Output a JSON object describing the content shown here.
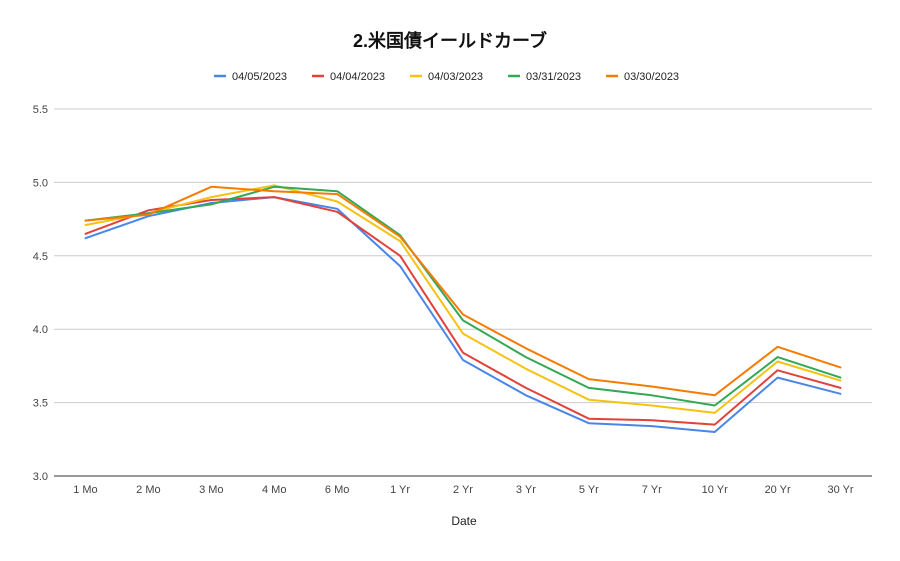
{
  "chart_data": {
    "type": "line",
    "title": "2.米国債イールドカーブ",
    "xlabel": "Date",
    "ylabel": "",
    "ylim": [
      3.0,
      5.5
    ],
    "yticks": [
      "3.0",
      "3.5",
      "4.0",
      "4.5",
      "5.0",
      "5.5"
    ],
    "grid": true,
    "legend_position": "top",
    "categories": [
      "1 Mo",
      "2 Mo",
      "3 Mo",
      "4 Mo",
      "6 Mo",
      "1 Yr",
      "2 Yr",
      "3 Yr",
      "5 Yr",
      "7 Yr",
      "10 Yr",
      "20 Yr",
      "30 Yr"
    ],
    "series": [
      {
        "name": "04/05/2023",
        "color": "#4a86e8",
        "values": [
          4.62,
          4.77,
          4.86,
          4.9,
          4.82,
          4.43,
          3.79,
          3.55,
          3.36,
          3.34,
          3.3,
          3.67,
          3.56
        ]
      },
      {
        "name": "04/04/2023",
        "color": "#e0433b",
        "values": [
          4.65,
          4.81,
          4.88,
          4.9,
          4.8,
          4.5,
          3.84,
          3.6,
          3.39,
          3.38,
          3.35,
          3.72,
          3.6
        ]
      },
      {
        "name": "04/03/2023",
        "color": "#f5c211",
        "values": [
          4.71,
          4.79,
          4.9,
          4.98,
          4.87,
          4.6,
          3.97,
          3.73,
          3.52,
          3.48,
          3.43,
          3.78,
          3.65
        ]
      },
      {
        "name": "03/31/2023",
        "color": "#34a853",
        "values": [
          4.74,
          4.79,
          4.85,
          4.97,
          4.94,
          4.64,
          4.06,
          3.81,
          3.6,
          3.55,
          3.48,
          3.81,
          3.67
        ]
      },
      {
        "name": "03/30/2023",
        "color": "#f57c00",
        "values": [
          4.74,
          4.78,
          4.97,
          4.94,
          4.92,
          4.63,
          4.1,
          3.87,
          3.66,
          3.61,
          3.55,
          3.88,
          3.74
        ]
      }
    ]
  }
}
